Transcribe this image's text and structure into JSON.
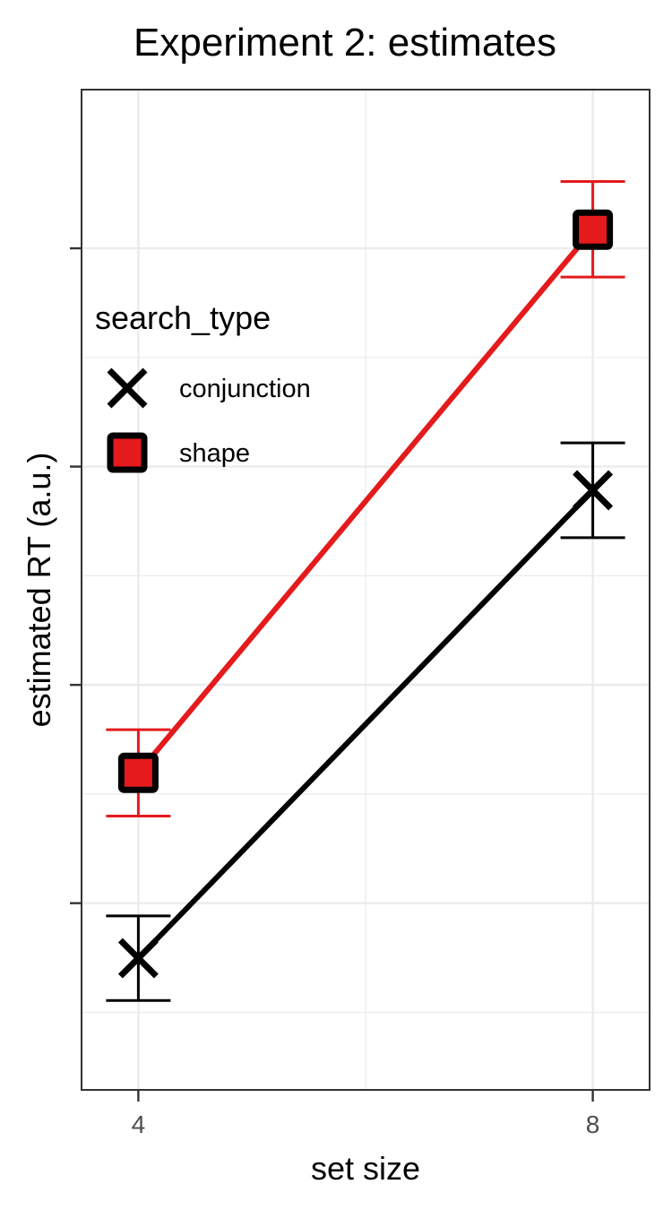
{
  "chart_data": {
    "type": "line",
    "title": "Experiment 2: estimates",
    "xlabel": "set size",
    "ylabel": "estimated RT (a.u.)",
    "x_ticks": [
      4,
      8
    ],
    "x_tick_labels": [
      "4",
      "8"
    ],
    "xlim": [
      3.5,
      8.5
    ],
    "ylim": [
      0,
      1
    ],
    "y_tick_labels_shown": false,
    "grid": true,
    "legend": {
      "title": "search_type",
      "position": "top-left inside"
    },
    "series": [
      {
        "name": "conjunction",
        "color": "#000000",
        "marker": "cross",
        "x": [
          4,
          8
        ],
        "y": [
          0.09,
          0.643
        ],
        "ci_low": [
          0.04,
          0.587
        ],
        "ci_high": [
          0.14,
          0.699
        ]
      },
      {
        "name": "shape",
        "color": "#e41a1c",
        "marker": "square",
        "x": [
          4,
          8
        ],
        "y": [
          0.309,
          0.951
        ],
        "ci_low": [
          0.258,
          0.895
        ],
        "ci_high": [
          0.36,
          1.008
        ]
      }
    ]
  }
}
